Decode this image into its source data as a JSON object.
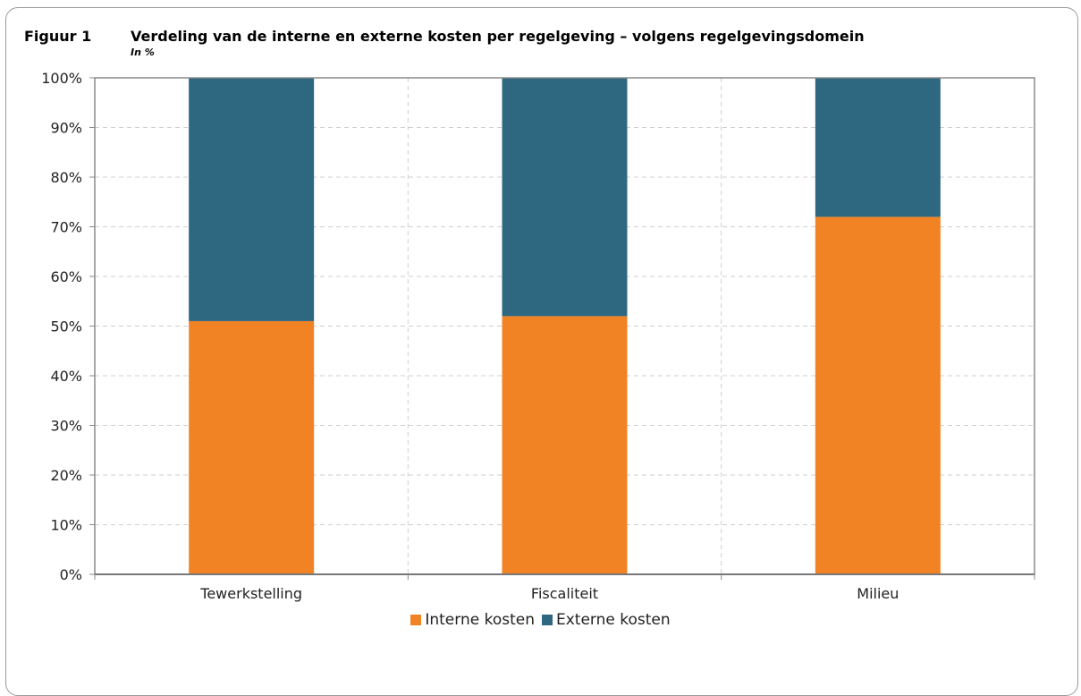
{
  "figure": {
    "number": "Figuur 1",
    "title": "Verdeling van de interne en externe kosten per regelgeving – volgens regelgevingsdomein",
    "subtitle": "In %"
  },
  "chart_data": {
    "type": "bar",
    "stacked": true,
    "categories": [
      "Tewerkstelling",
      "Fiscaliteit",
      "Milieu"
    ],
    "series": [
      {
        "name": "Interne kosten",
        "values": [
          51,
          52,
          72
        ],
        "color": "#f28325"
      },
      {
        "name": "Externe kosten",
        "values": [
          49,
          48,
          28
        ],
        "color": "#2e6880"
      }
    ],
    "ylim": [
      0,
      100
    ],
    "yticks": [
      "0%",
      "10%",
      "20%",
      "30%",
      "40%",
      "50%",
      "60%",
      "70%",
      "80%",
      "90%",
      "100%"
    ],
    "grid": true,
    "legend": "bottom"
  }
}
